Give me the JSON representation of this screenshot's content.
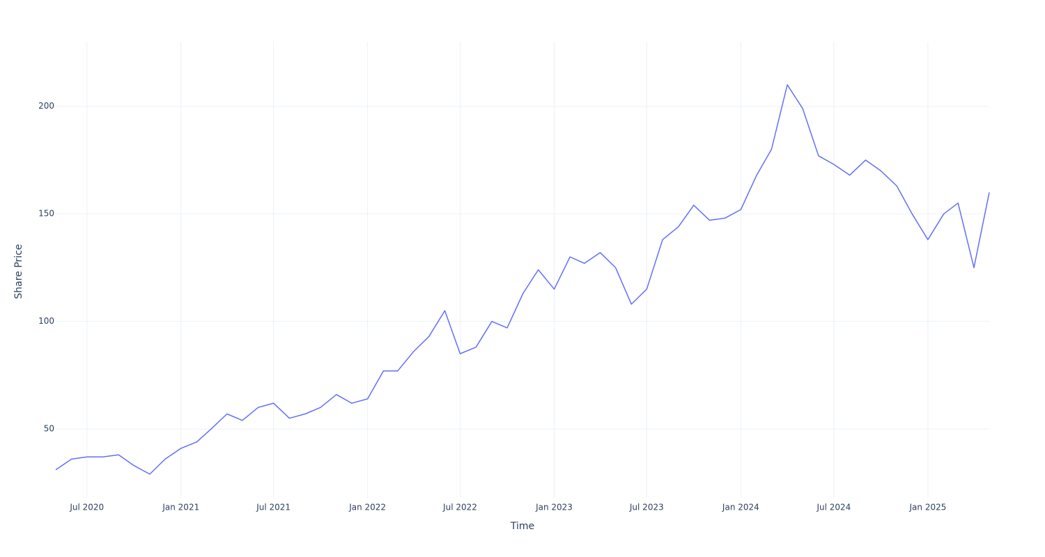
{
  "chart_data": {
    "type": "line",
    "x_title": "Time",
    "y_title": "Share Price",
    "x": [
      "2020-05",
      "2020-06",
      "2020-07",
      "2020-08",
      "2020-09",
      "2020-10",
      "2020-11",
      "2020-12",
      "2021-01",
      "2021-02",
      "2021-03",
      "2021-04",
      "2021-05",
      "2021-06",
      "2021-07",
      "2021-08",
      "2021-09",
      "2021-10",
      "2021-11",
      "2021-12",
      "2022-01",
      "2022-02",
      "2022-03",
      "2022-04",
      "2022-05",
      "2022-06",
      "2022-07",
      "2022-08",
      "2022-09",
      "2022-10",
      "2022-11",
      "2022-12",
      "2023-01",
      "2023-02",
      "2023-03",
      "2023-04",
      "2023-05",
      "2023-06",
      "2023-07",
      "2023-08",
      "2023-09",
      "2023-10",
      "2023-11",
      "2023-12",
      "2024-01",
      "2024-02",
      "2024-03",
      "2024-04",
      "2024-05",
      "2024-06",
      "2024-07",
      "2024-08",
      "2024-09",
      "2024-10",
      "2024-11",
      "2024-12",
      "2025-01",
      "2025-02",
      "2025-03",
      "2025-04",
      "2025-05"
    ],
    "series": [
      {
        "name": "Share Price",
        "color": "#636efa",
        "values": [
          31,
          36,
          37,
          37,
          38,
          33,
          29,
          36,
          41,
          44,
          50,
          57,
          54,
          60,
          62,
          55,
          57,
          60,
          66,
          62,
          64,
          77,
          77,
          86,
          93,
          105,
          85,
          88,
          100,
          97,
          113,
          124,
          115,
          130,
          127,
          132,
          125,
          108,
          115,
          138,
          144,
          154,
          147,
          148,
          152,
          168,
          180,
          210,
          199,
          177,
          173,
          168,
          175,
          170,
          163,
          150,
          138,
          150,
          155,
          125,
          160
        ]
      }
    ],
    "xlim": [
      "2020-05",
      "2025-05"
    ],
    "xticks": [
      {
        "value": "2020-07",
        "label": "Jul 2020"
      },
      {
        "value": "2021-01",
        "label": "Jan 2021"
      },
      {
        "value": "2021-07",
        "label": "Jul 2021"
      },
      {
        "value": "2022-01",
        "label": "Jan 2022"
      },
      {
        "value": "2022-07",
        "label": "Jul 2022"
      },
      {
        "value": "2023-01",
        "label": "Jan 2023"
      },
      {
        "value": "2023-07",
        "label": "Jul 2023"
      },
      {
        "value": "2024-01",
        "label": "Jan 2024"
      },
      {
        "value": "2024-07",
        "label": "Jul 2024"
      },
      {
        "value": "2025-01",
        "label": "Jan 2025"
      }
    ],
    "ylim": [
      18,
      230
    ],
    "yticks": [
      50,
      100,
      150,
      200
    ],
    "grid": true
  }
}
